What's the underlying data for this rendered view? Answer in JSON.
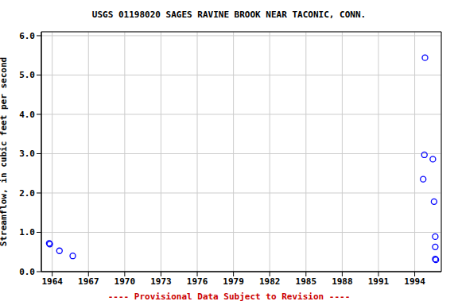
{
  "chart_data": {
    "type": "scatter",
    "title": "USGS 01198020 SAGES RAVINE BROOK NEAR TACONIC, CONN.",
    "subtitle": "---- Provisional Data Subject to Revision ----",
    "ylabel": "Streamflow, in cubic feet per second",
    "x": [
      1963.75,
      1963.8,
      1964.6,
      1965.7,
      1994.7,
      1994.8,
      1994.85,
      1995.5,
      1995.6,
      1995.7,
      1995.7,
      1995.7,
      1995.75
    ],
    "values": [
      0.72,
      0.7,
      0.53,
      0.4,
      2.35,
      2.97,
      5.44,
      2.86,
      1.78,
      0.89,
      0.63,
      0.32,
      0.3
    ],
    "color": "#0000ff",
    "marker": "open_circle",
    "xlim": [
      1963.1,
      1996.2
    ],
    "xticks": [
      1964,
      1967,
      1970,
      1973,
      1976,
      1979,
      1982,
      1985,
      1988,
      1991,
      1994
    ],
    "ylim": [
      0,
      6.1
    ],
    "yticks": [
      {
        "value": 0,
        "label": "0.0"
      },
      {
        "value": 1,
        "label": "1.0"
      },
      {
        "value": 2,
        "label": "2.0"
      },
      {
        "value": 3,
        "label": "3.0"
      },
      {
        "value": 4,
        "label": "4.0"
      },
      {
        "value": 5,
        "label": "5.0"
      },
      {
        "value": 6,
        "label": "6.0"
      }
    ],
    "grid": true
  }
}
